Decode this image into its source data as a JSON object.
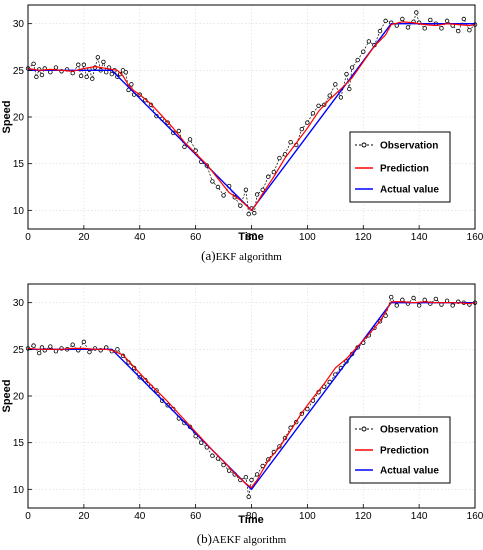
{
  "chart_data": [
    {
      "type": "line",
      "caption_label": "(a)",
      "caption_text": "EKF algorithm",
      "xlabel": "Time",
      "ylabel": "Speed",
      "xlim": [
        0,
        160
      ],
      "ylim": [
        8,
        32
      ],
      "xticks": [
        0,
        20,
        40,
        60,
        80,
        100,
        120,
        140,
        160
      ],
      "yticks": [
        10,
        15,
        20,
        25,
        30
      ],
      "grid": true,
      "legend_position": "lower-right",
      "series": [
        {
          "name": "Observation",
          "color": "#000000",
          "style": "dashed-circle-markers",
          "x": [
            0,
            2,
            3,
            4,
            5,
            6,
            8,
            10,
            12,
            14,
            16,
            18,
            19,
            20,
            21,
            22,
            23,
            24,
            25,
            26,
            27,
            28,
            29,
            30,
            31,
            32,
            33,
            34,
            35,
            36,
            37,
            38,
            40,
            42,
            44,
            46,
            48,
            50,
            52,
            54,
            56,
            58,
            60,
            62,
            64,
            66,
            68,
            70,
            72,
            74,
            76,
            78,
            79,
            80,
            81,
            82,
            84,
            86,
            88,
            90,
            92,
            94,
            96,
            98,
            100,
            102,
            104,
            106,
            108,
            110,
            112,
            114,
            115,
            116,
            118,
            120,
            122,
            124,
            126,
            128,
            130,
            132,
            134,
            136,
            138,
            139,
            140,
            142,
            144,
            146,
            148,
            150,
            152,
            154,
            156,
            158,
            160
          ],
          "y": [
            25.2,
            25.7,
            24.3,
            25.1,
            24.5,
            25.2,
            24.8,
            25.3,
            24.9,
            25.1,
            24.7,
            25.6,
            24.4,
            25.6,
            24.3,
            25.1,
            24.1,
            25.3,
            26.4,
            25.0,
            25.9,
            24.8,
            25.3,
            24.6,
            25.0,
            24.3,
            24.6,
            25.0,
            24.8,
            22.9,
            23.5,
            22.4,
            22.4,
            21.8,
            21.3,
            20.1,
            19.8,
            19.4,
            18.3,
            18.5,
            16.8,
            17.6,
            16.4,
            15.2,
            14.8,
            13.1,
            12.5,
            11.6,
            12.6,
            11.4,
            10.5,
            12.2,
            9.6,
            10.2,
            9.7,
            11.7,
            12.2,
            13.6,
            14.1,
            15.6,
            16.0,
            17.3,
            17.0,
            18.7,
            19.4,
            20.4,
            21.2,
            21.3,
            22.3,
            23.5,
            22.1,
            24.6,
            23.0,
            25.3,
            26.1,
            27.0,
            28.1,
            27.7,
            29.2,
            30.3,
            30.1,
            29.8,
            30.5,
            29.6,
            30.2,
            31.2,
            30.1,
            29.5,
            30.4,
            30.0,
            29.5,
            30.3,
            29.8,
            29.2,
            30.5,
            29.3,
            29.9
          ]
        },
        {
          "name": "Prediction",
          "color": "#ff0000",
          "style": "solid",
          "x": [
            0,
            4,
            8,
            12,
            16,
            20,
            24,
            28,
            32,
            34,
            36,
            38,
            40,
            44,
            48,
            52,
            56,
            60,
            64,
            68,
            72,
            76,
            80,
            82,
            84,
            88,
            92,
            96,
            100,
            104,
            108,
            112,
            116,
            120,
            124,
            128,
            130,
            134,
            138,
            142,
            146,
            150,
            154,
            158,
            160
          ],
          "y": [
            25.2,
            25.0,
            25.1,
            25.0,
            24.9,
            25.2,
            25.4,
            25.2,
            25.0,
            24.4,
            23.4,
            22.8,
            22.4,
            21.4,
            20.1,
            18.8,
            17.3,
            16.1,
            14.9,
            13.4,
            11.9,
            11.1,
            10.0,
            10.8,
            11.8,
            13.6,
            15.6,
            17.2,
            18.8,
            20.6,
            21.9,
            23.0,
            24.2,
            25.9,
            27.6,
            28.8,
            29.9,
            30.2,
            30.1,
            29.9,
            29.8,
            30.0,
            29.9,
            29.8,
            29.9
          ]
        },
        {
          "name": "Actual value",
          "color": "#0000ff",
          "style": "solid",
          "x": [
            0,
            30,
            80,
            130,
            160
          ],
          "y": [
            25,
            25,
            10,
            30,
            30
          ]
        }
      ]
    },
    {
      "type": "line",
      "caption_label": "(b)",
      "caption_text": "AEKF algorithm",
      "xlabel": "Time",
      "ylabel": "Speed",
      "xlim": [
        0,
        160
      ],
      "ylim": [
        8,
        32
      ],
      "xticks": [
        0,
        20,
        40,
        60,
        80,
        100,
        120,
        140,
        160
      ],
      "yticks": [
        10,
        15,
        20,
        25,
        30
      ],
      "grid": true,
      "legend_position": "lower-right",
      "series": [
        {
          "name": "Observation",
          "color": "#000000",
          "style": "dashed-circle-markers",
          "x": [
            0,
            2,
            4,
            5,
            6,
            8,
            10,
            12,
            14,
            16,
            18,
            20,
            22,
            24,
            26,
            28,
            30,
            32,
            34,
            36,
            38,
            40,
            42,
            44,
            46,
            48,
            50,
            52,
            54,
            56,
            58,
            60,
            62,
            64,
            66,
            68,
            70,
            72,
            74,
            76,
            78,
            79,
            80,
            82,
            84,
            86,
            88,
            90,
            92,
            94,
            96,
            98,
            100,
            102,
            104,
            106,
            108,
            110,
            112,
            114,
            116,
            118,
            120,
            122,
            124,
            126,
            128,
            130,
            132,
            134,
            136,
            138,
            140,
            142,
            144,
            146,
            148,
            150,
            152,
            154,
            156,
            158,
            160
          ],
          "y": [
            25.1,
            25.4,
            24.6,
            25.2,
            24.9,
            25.3,
            24.8,
            25.1,
            25.0,
            25.5,
            24.9,
            25.8,
            24.7,
            25.1,
            24.9,
            25.2,
            24.8,
            25.0,
            24.3,
            23.6,
            23.0,
            22.0,
            21.7,
            21.0,
            20.6,
            19.5,
            19.0,
            18.6,
            17.6,
            17.1,
            16.7,
            15.7,
            15.0,
            14.5,
            13.6,
            13.3,
            12.6,
            12.0,
            11.6,
            11.0,
            11.3,
            9.2,
            11.0,
            11.6,
            12.5,
            13.2,
            14.0,
            14.6,
            15.5,
            16.6,
            17.2,
            18.1,
            18.6,
            19.5,
            20.4,
            21.0,
            21.5,
            22.3,
            23.0,
            23.7,
            24.5,
            25.2,
            25.7,
            26.5,
            27.3,
            28.0,
            28.6,
            30.6,
            29.7,
            30.3,
            29.9,
            30.5,
            29.7,
            30.3,
            29.9,
            30.4,
            29.8,
            30.2,
            29.7,
            30.1,
            30.0,
            29.8,
            30.0
          ]
        },
        {
          "name": "Prediction",
          "color": "#ff0000",
          "style": "solid",
          "x": [
            0,
            4,
            8,
            12,
            16,
            20,
            24,
            28,
            30,
            34,
            38,
            42,
            46,
            50,
            54,
            58,
            62,
            66,
            70,
            74,
            78,
            80,
            82,
            86,
            90,
            94,
            98,
            102,
            106,
            110,
            114,
            118,
            122,
            126,
            128,
            130,
            134,
            138,
            142,
            146,
            150,
            154,
            158,
            160
          ],
          "y": [
            25.1,
            25.0,
            25.0,
            25.0,
            25.1,
            25.1,
            25.0,
            25.0,
            24.9,
            24.4,
            23.1,
            21.8,
            20.6,
            19.4,
            18.1,
            16.8,
            15.5,
            14.2,
            13.0,
            11.7,
            10.6,
            10.2,
            11.0,
            13.1,
            14.5,
            16.3,
            18.2,
            19.8,
            21.3,
            23.0,
            24.0,
            25.3,
            26.6,
            28.0,
            29.0,
            30.1,
            30.1,
            30.0,
            30.1,
            30.0,
            30.0,
            30.0,
            29.9,
            30.0
          ]
        },
        {
          "name": "Actual value",
          "color": "#0000ff",
          "style": "solid",
          "x": [
            0,
            30,
            80,
            130,
            160
          ],
          "y": [
            25,
            25,
            10,
            30,
            30
          ]
        }
      ]
    }
  ]
}
